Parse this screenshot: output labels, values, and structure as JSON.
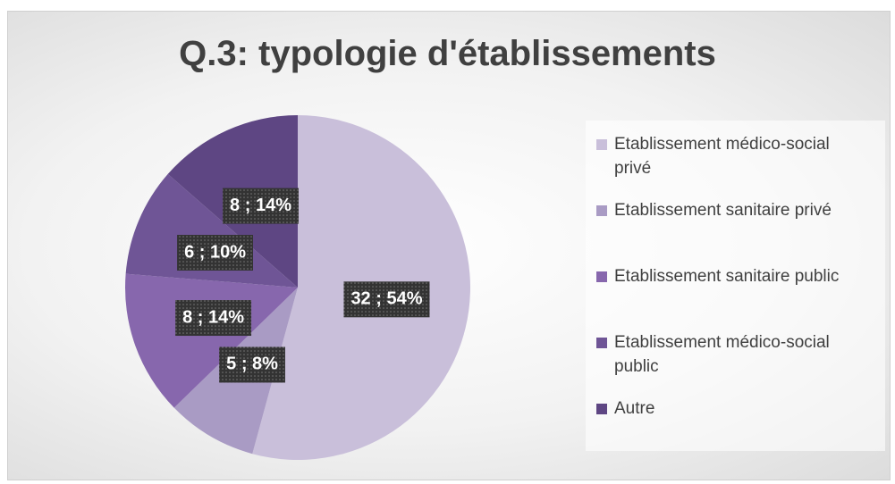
{
  "chart_data": {
    "type": "pie",
    "title": "Q.3: typologie d'établissements",
    "categories": [
      "Etablissement médico-social privé",
      "Etablissement sanitaire privé",
      "Etablissement sanitaire public",
      "Etablissement médico-social public",
      "Autre"
    ],
    "values": [
      32,
      5,
      8,
      6,
      8
    ],
    "value_labels": [
      "32 ; 54%",
      "5 ; 8%",
      "8 ; 14%",
      "6 ; 10%",
      "8 ; 14%"
    ],
    "colors": [
      "#c9bfda",
      "#a99bc4",
      "#8767ad",
      "#6f5596",
      "#5e4683"
    ],
    "legend": "right"
  }
}
